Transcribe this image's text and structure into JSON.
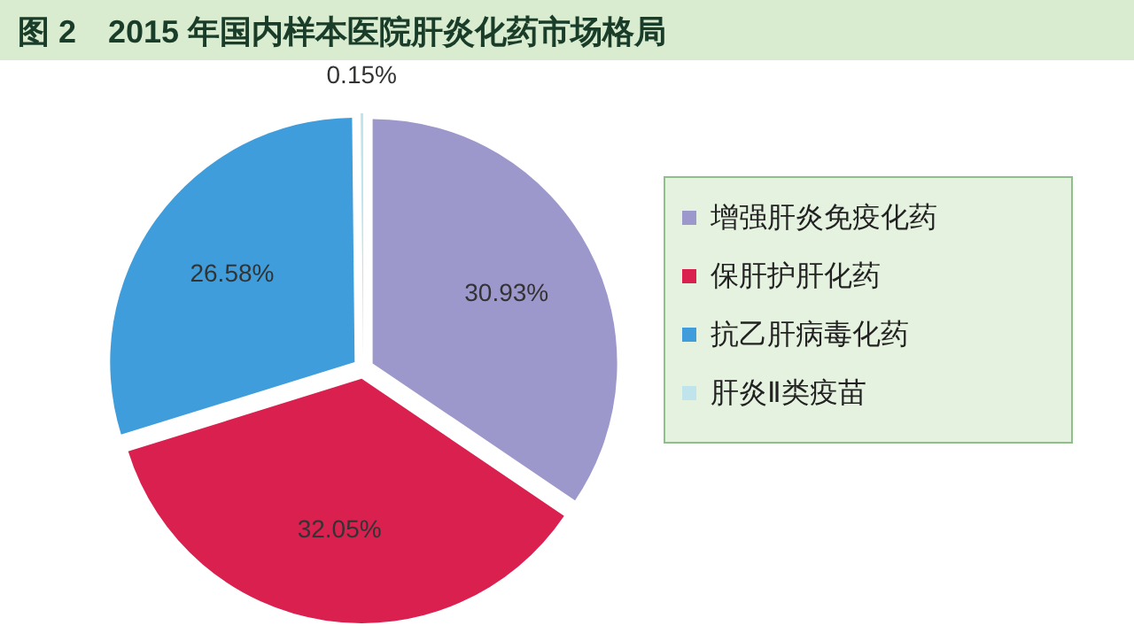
{
  "chart_data": {
    "type": "pie",
    "title": "图 2　2015 年国内样本医院肝炎化药市场格局",
    "categories": [
      "增强肝炎免疫化药",
      "保肝护肝化药",
      "抗乙肝病毒化药",
      "肝炎Ⅱ类疫苗"
    ],
    "values": [
      30.93,
      32.05,
      26.58,
      0.15
    ],
    "colors": [
      "#9d98cc",
      "#d9204f",
      "#3f9ddb",
      "#bfe4ec"
    ],
    "value_labels": [
      "30.93%",
      "32.05%",
      "26.58%",
      "0.15%"
    ],
    "legend": "right"
  }
}
